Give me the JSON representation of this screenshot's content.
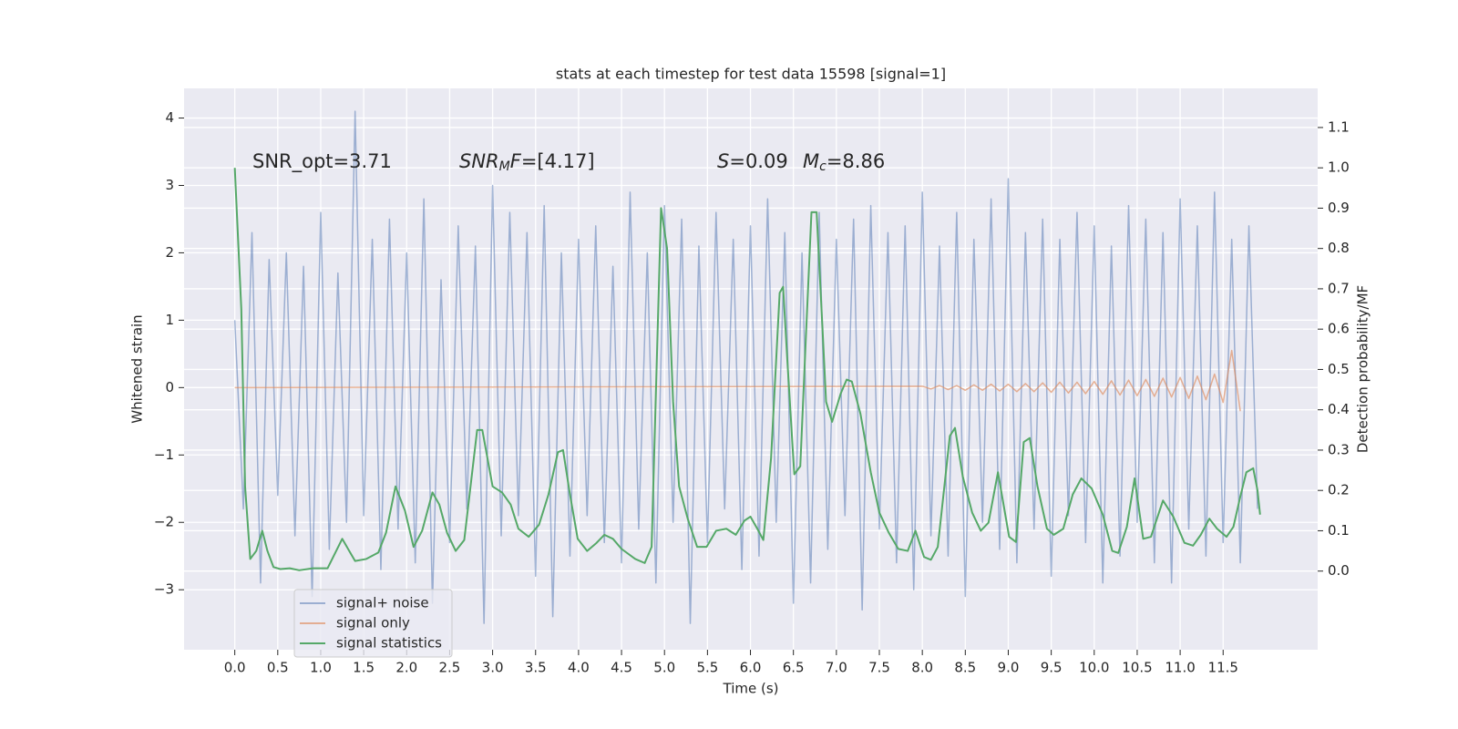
{
  "chart_data": {
    "type": "line",
    "title": "stats at each timestep for test data 15598 [signal=1]",
    "x_label": "Time (s)",
    "y_label": "Whitened strain",
    "y2_label": "Detection probability/MF",
    "xlim": [
      -0.59,
      12.6
    ],
    "ylim": [
      -3.89,
      4.44
    ],
    "y2lim": [
      -0.195,
      1.197
    ],
    "grid": true,
    "legend_loc": "lower left",
    "xticks": [
      {
        "value": 0,
        "label": "0.0"
      },
      0.5,
      {
        "value": 1,
        "label": "1.0"
      },
      1.5,
      {
        "value": 2,
        "label": "2.0"
      },
      2.5,
      {
        "value": 3,
        "label": "3.0"
      },
      3.5,
      {
        "value": 4,
        "label": "4.0"
      },
      4.5,
      {
        "value": 5,
        "label": "5.0"
      },
      5.5,
      {
        "value": 6,
        "label": "6.0"
      },
      6.5,
      {
        "value": 7,
        "label": "7.0"
      },
      7.5,
      {
        "value": 8,
        "label": "8.0"
      },
      8.5,
      {
        "value": 9,
        "label": "9.0"
      },
      9.5,
      {
        "value": 10,
        "label": "10.0"
      },
      10.5,
      {
        "value": 11,
        "label": "11.0"
      },
      11.5
    ],
    "yticks": [
      {
        "value": -3,
        "label": "−3"
      },
      {
        "value": -2,
        "label": "−2"
      },
      {
        "value": -1,
        "label": "−1"
      },
      0,
      1,
      2,
      3,
      4
    ],
    "y2ticks": [
      {
        "value": 0,
        "label": "0.0"
      },
      0.1,
      0.2,
      0.3,
      0.4,
      0.5,
      0.6,
      0.7,
      0.8,
      0.9,
      {
        "value": 1,
        "label": "1.0"
      },
      1.1
    ],
    "annotations": [
      {
        "parts": [
          {
            "text": "SNR_opt=3.71"
          }
        ]
      },
      {
        "parts": [
          {
            "text": "SNR",
            "italic": true
          },
          {
            "text": "M",
            "italic": true,
            "sub": true
          },
          {
            "text": "F",
            "italic": true
          },
          {
            "text": "=[4.17]"
          }
        ]
      },
      {
        "parts": [
          {
            "text": "S",
            "italic": true
          },
          {
            "text": "=0.09"
          }
        ]
      },
      {
        "parts": [
          {
            "text": "M",
            "italic": true
          },
          {
            "text": "c",
            "italic": true,
            "sub": true
          },
          {
            "text": "=8.86"
          }
        ]
      }
    ],
    "series": [
      {
        "name": "signal+ noise",
        "color": "#4c72b0",
        "opacity": 0.5,
        "x": [
          0.0,
          0.1,
          0.2,
          0.3,
          0.4,
          0.5,
          0.6,
          0.7,
          0.8,
          0.9,
          1.0,
          1.1,
          1.2,
          1.3,
          1.4,
          1.5,
          1.6,
          1.7,
          1.8,
          1.9,
          2.0,
          2.1,
          2.2,
          2.3,
          2.4,
          2.5,
          2.6,
          2.7,
          2.8,
          2.9,
          3.0,
          3.1,
          3.2,
          3.3,
          3.4,
          3.5,
          3.6,
          3.7,
          3.8,
          3.9,
          4.0,
          4.1,
          4.2,
          4.3,
          4.4,
          4.5,
          4.6,
          4.7,
          4.8,
          4.9,
          5.0,
          5.1,
          5.2,
          5.3,
          5.4,
          5.5,
          5.6,
          5.7,
          5.8,
          5.9,
          6.0,
          6.1,
          6.2,
          6.3,
          6.4,
          6.5,
          6.6,
          6.7,
          6.8,
          6.9,
          7.0,
          7.1,
          7.2,
          7.3,
          7.4,
          7.5,
          7.6,
          7.7,
          7.8,
          7.9,
          8.0,
          8.1,
          8.2,
          8.3,
          8.4,
          8.5,
          8.6,
          8.7,
          8.8,
          8.9,
          9.0,
          9.1,
          9.2,
          9.3,
          9.4,
          9.5,
          9.6,
          9.7,
          9.8,
          9.9,
          10.0,
          10.1,
          10.2,
          10.3,
          10.4,
          10.5,
          10.6,
          10.7,
          10.8,
          10.9,
          11.0,
          11.1,
          11.2,
          11.3,
          11.4,
          11.5,
          11.6,
          11.7,
          11.8,
          11.9
        ],
        "values": [
          1.0,
          -1.8,
          2.3,
          -2.9,
          1.9,
          -1.6,
          2.0,
          -2.2,
          1.8,
          -3.1,
          2.6,
          -2.4,
          1.7,
          -2.0,
          4.1,
          -1.9,
          2.2,
          -2.7,
          2.5,
          -2.1,
          2.0,
          -2.6,
          2.8,
          -3.2,
          1.6,
          -2.3,
          2.4,
          -1.8,
          2.1,
          -3.5,
          3.0,
          -2.2,
          2.6,
          -1.9,
          2.3,
          -2.8,
          2.7,
          -3.4,
          2.0,
          -2.5,
          2.2,
          -1.9,
          2.4,
          -2.3,
          1.8,
          -2.6,
          2.9,
          -2.1,
          2.0,
          -2.9,
          2.7,
          -2.0,
          2.5,
          -3.5,
          2.1,
          -2.3,
          2.6,
          -1.8,
          2.2,
          -2.7,
          2.4,
          -2.5,
          2.8,
          -2.0,
          2.3,
          -3.2,
          2.0,
          -2.9,
          2.6,
          -2.4,
          2.2,
          -1.9,
          2.5,
          -3.3,
          2.7,
          -2.1,
          2.3,
          -2.6,
          2.4,
          -3.0,
          2.9,
          -2.2,
          2.1,
          -2.5,
          2.6,
          -3.1,
          2.2,
          -2.0,
          2.8,
          -2.4,
          3.1,
          -2.6,
          2.3,
          -2.1,
          2.5,
          -2.8,
          2.2,
          -1.9,
          2.6,
          -2.3,
          2.4,
          -2.9,
          2.1,
          -2.5,
          2.7,
          -2.0,
          2.5,
          -2.6,
          2.3,
          -2.9,
          2.8,
          -2.1,
          2.4,
          -2.5,
          2.9,
          -2.3,
          2.2,
          -2.6,
          2.4,
          -1.8
        ]
      },
      {
        "name": "signal only",
        "color": "#dd8452",
        "opacity": 0.6,
        "x": [
          0.0,
          8.0,
          8.1,
          8.2,
          8.3,
          8.4,
          8.5,
          8.6,
          8.7,
          8.8,
          8.9,
          9.0,
          9.1,
          9.2,
          9.3,
          9.4,
          9.5,
          9.6,
          9.7,
          9.8,
          9.9,
          10.0,
          10.1,
          10.2,
          10.3,
          10.4,
          10.5,
          10.6,
          10.7,
          10.8,
          10.9,
          11.0,
          11.1,
          11.2,
          11.3,
          11.4,
          11.5,
          11.6,
          11.7
        ],
        "values": [
          0.0,
          0.02,
          -0.02,
          0.03,
          -0.03,
          0.03,
          -0.04,
          0.04,
          -0.04,
          0.05,
          -0.05,
          0.05,
          -0.06,
          0.06,
          -0.06,
          0.07,
          -0.07,
          0.08,
          -0.08,
          0.08,
          -0.09,
          0.09,
          -0.1,
          0.1,
          -0.11,
          0.11,
          -0.12,
          0.12,
          -0.13,
          0.14,
          -0.14,
          0.15,
          -0.16,
          0.17,
          -0.18,
          0.2,
          -0.22,
          0.55,
          -0.35
        ]
      },
      {
        "name": "signal statistics",
        "color": "#55a868",
        "opacity": 1,
        "axis": "y2",
        "x": [
          0.0,
          0.076,
          0.12,
          0.18,
          0.25,
          0.32,
          0.38,
          0.45,
          0.53,
          0.64,
          0.75,
          0.91,
          1.08,
          1.25,
          1.4,
          1.53,
          1.67,
          1.76,
          1.87,
          1.98,
          2.08,
          2.18,
          2.3,
          2.38,
          2.47,
          2.57,
          2.67,
          2.82,
          2.88,
          3.0,
          3.11,
          3.21,
          3.3,
          3.42,
          3.54,
          3.65,
          3.76,
          3.82,
          3.9,
          3.99,
          4.1,
          4.21,
          4.3,
          4.4,
          4.5,
          4.66,
          4.77,
          4.85,
          4.96,
          5.03,
          5.1,
          5.17,
          5.27,
          5.38,
          5.49,
          5.6,
          5.72,
          5.83,
          5.93,
          6.0,
          6.08,
          6.15,
          6.24,
          6.34,
          6.38,
          6.43,
          6.51,
          6.58,
          6.64,
          6.71,
          6.77,
          6.84,
          6.88,
          6.95,
          7.05,
          7.12,
          7.18,
          7.28,
          7.4,
          7.5,
          7.61,
          7.72,
          7.83,
          7.92,
          8.02,
          8.1,
          8.18,
          8.32,
          8.38,
          8.47,
          8.58,
          8.68,
          8.77,
          8.88,
          9.01,
          9.09,
          9.18,
          9.25,
          9.34,
          9.45,
          9.53,
          9.64,
          9.75,
          9.85,
          9.97,
          10.1,
          10.21,
          10.28,
          10.38,
          10.47,
          10.57,
          10.66,
          10.8,
          10.92,
          11.05,
          11.15,
          11.24,
          11.34,
          11.43,
          11.54,
          11.62,
          11.7,
          11.77,
          11.85,
          11.9,
          11.93
        ],
        "values": [
          1.0,
          0.65,
          0.21,
          0.03,
          0.05,
          0.1,
          0.05,
          0.01,
          0.005,
          0.007,
          0.002,
          0.007,
          0.007,
          0.08,
          0.025,
          0.03,
          0.046,
          0.095,
          0.21,
          0.15,
          0.06,
          0.1,
          0.195,
          0.165,
          0.095,
          0.05,
          0.077,
          0.35,
          0.35,
          0.21,
          0.195,
          0.165,
          0.105,
          0.085,
          0.115,
          0.19,
          0.295,
          0.3,
          0.19,
          0.08,
          0.05,
          0.07,
          0.09,
          0.08,
          0.055,
          0.03,
          0.02,
          0.06,
          0.9,
          0.8,
          0.42,
          0.21,
          0.13,
          0.06,
          0.06,
          0.1,
          0.105,
          0.09,
          0.125,
          0.135,
          0.105,
          0.077,
          0.28,
          0.69,
          0.705,
          0.52,
          0.24,
          0.26,
          0.555,
          0.89,
          0.89,
          0.595,
          0.42,
          0.37,
          0.44,
          0.475,
          0.47,
          0.39,
          0.245,
          0.145,
          0.095,
          0.055,
          0.05,
          0.1,
          0.035,
          0.028,
          0.06,
          0.335,
          0.355,
          0.235,
          0.145,
          0.1,
          0.12,
          0.245,
          0.085,
          0.072,
          0.32,
          0.33,
          0.21,
          0.105,
          0.09,
          0.105,
          0.19,
          0.23,
          0.205,
          0.14,
          0.05,
          0.045,
          0.11,
          0.23,
          0.08,
          0.085,
          0.175,
          0.135,
          0.07,
          0.063,
          0.09,
          0.13,
          0.105,
          0.085,
          0.11,
          0.185,
          0.245,
          0.255,
          0.2,
          0.14
        ]
      }
    ]
  }
}
